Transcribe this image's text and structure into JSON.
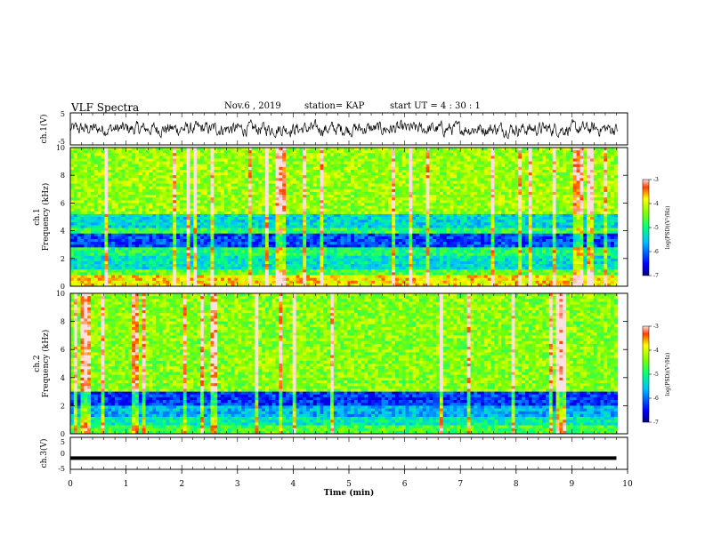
{
  "header": {
    "title": "VLF Spectra",
    "date": "Nov.6 , 2019",
    "station": "station= KAP",
    "start": "start UT = 4 : 30 : 1"
  },
  "chart_data": [
    {
      "type": "line",
      "panel": "ch1-waveform",
      "ylabel": "ch.1(V)",
      "ylim": [
        -5,
        5
      ],
      "y_ticks": [
        "5",
        "-5"
      ],
      "xlim": [
        0,
        10
      ],
      "description_series": "noisy waveform between about -3 and 3 V over 0 to 9.8 min"
    },
    {
      "type": "heatmap",
      "panel": "ch1-spectrogram",
      "ylabel": "ch.1\nFrequency (kHz)",
      "ylim": [
        0,
        10
      ],
      "y_ticks": [
        "0",
        "2",
        "4",
        "6",
        "8",
        "10"
      ],
      "xlim": [
        0,
        10
      ],
      "colorbar": {
        "label": "log(PSD)(V²/Hz)",
        "range": [
          -7,
          -3
        ],
        "ticks": [
          "-3",
          "-4",
          "-5",
          "-6",
          "-7"
        ]
      }
    },
    {
      "type": "heatmap",
      "panel": "ch2-spectrogram",
      "ylabel": "ch.2\nFrequency (kHz)",
      "ylim": [
        0,
        10
      ],
      "y_ticks": [
        "0",
        "2",
        "4",
        "6",
        "8",
        "10"
      ],
      "xlim": [
        0,
        10
      ],
      "colorbar": {
        "label": "log(PSD)(V²/Hz)",
        "range": [
          -7,
          -3
        ],
        "ticks": [
          "-3",
          "-4",
          "-5",
          "-6",
          "-7"
        ]
      }
    },
    {
      "type": "line",
      "panel": "ch3-waveform",
      "ylabel": "ch.3(V)",
      "ylim": [
        -5,
        5
      ],
      "y_ticks": [
        "5",
        "0",
        "-5"
      ],
      "xlim": [
        0,
        10
      ],
      "series": [
        {
          "x": [
            0,
            9.8
          ],
          "y": [
            -1.5,
            -1.5
          ]
        }
      ]
    }
  ],
  "x_axis": {
    "label": "Time (min)",
    "ticks": [
      "0",
      "1",
      "2",
      "3",
      "4",
      "5",
      "6",
      "7",
      "8",
      "9",
      "10"
    ]
  },
  "colorbar_labels": {
    "ch1": {
      "text": "log(PSD)(V²/Hz)",
      "ticks": [
        "-3",
        "-4",
        "-5",
        "-6",
        "-7"
      ]
    },
    "ch2": {
      "text": "log(PSD)(V²/Hz)",
      "ticks": [
        "-3",
        "-4",
        "-5",
        "-6",
        "-7"
      ]
    }
  }
}
